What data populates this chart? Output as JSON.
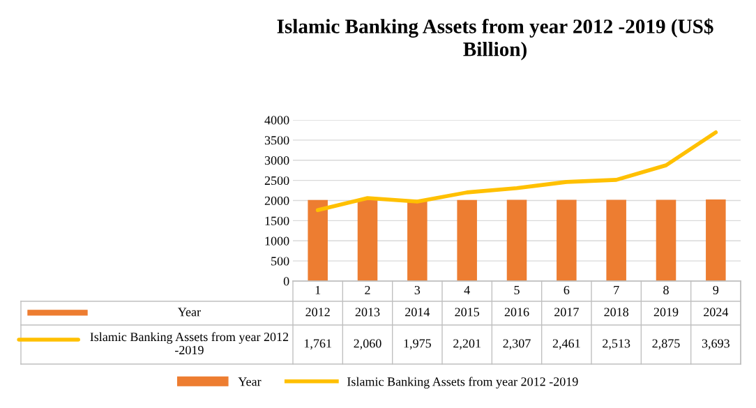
{
  "chart_data": {
    "type": "bar",
    "title": "Islamic Banking Assets from year 2012 -2019 (US$ Billion)",
    "categories": [
      "1",
      "2",
      "3",
      "4",
      "5",
      "6",
      "7",
      "8",
      "9"
    ],
    "series": [
      {
        "name": "Year",
        "color": "#ed7d31",
        "values": [
          2012,
          2013,
          2014,
          2015,
          2016,
          2017,
          2018,
          2019,
          2024
        ],
        "value_labels": [
          "2012",
          "2013",
          "2014",
          "2015",
          "2016",
          "2017",
          "2018",
          "2019",
          "2024"
        ]
      },
      {
        "name": "Islamic Banking Assets from year 2012 -2019",
        "type": "line",
        "color": "#ffc000",
        "values": [
          1761,
          2060,
          1975,
          2201,
          2307,
          2461,
          2513,
          2875,
          3693
        ],
        "value_labels": [
          "1,761",
          "2,060",
          "1,975",
          "2,201",
          "2,307",
          "2,461",
          "2,513",
          "2,875",
          "3,693"
        ]
      }
    ],
    "ylim": [
      0,
      4000
    ],
    "yticks": [
      0,
      500,
      1000,
      1500,
      2000,
      2500,
      3000,
      3500,
      4000
    ],
    "grid": "y",
    "legend": "bottom",
    "marker": "none",
    "line_style": "solid"
  }
}
